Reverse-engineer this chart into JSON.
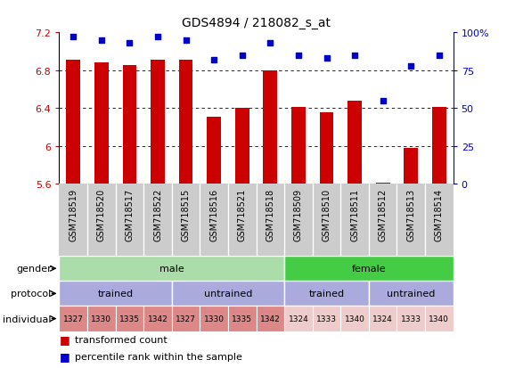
{
  "title": "GDS4894 / 218082_s_at",
  "samples": [
    "GSM718519",
    "GSM718520",
    "GSM718517",
    "GSM718522",
    "GSM718515",
    "GSM718516",
    "GSM718521",
    "GSM718518",
    "GSM718509",
    "GSM718510",
    "GSM718511",
    "GSM718512",
    "GSM718513",
    "GSM718514"
  ],
  "bar_values": [
    6.91,
    6.88,
    6.85,
    6.91,
    6.91,
    6.31,
    6.4,
    6.8,
    6.41,
    6.36,
    6.48,
    5.61,
    5.98,
    6.41
  ],
  "dot_values_pct": [
    97,
    95,
    93,
    97,
    95,
    82,
    85,
    93,
    85,
    83,
    85,
    55,
    78,
    85
  ],
  "ylim_left": [
    5.6,
    7.2
  ],
  "ylim_right": [
    0,
    100
  ],
  "yticks_left": [
    5.6,
    6.0,
    6.4,
    6.8,
    7.2
  ],
  "ytick_labels_left": [
    "5.6",
    "6",
    "6.4",
    "6.8",
    "7.2"
  ],
  "ytick_labels_right": [
    "0",
    "25",
    "50",
    "75",
    "100%"
  ],
  "yticks_right": [
    0,
    25,
    50,
    75,
    100
  ],
  "bar_color": "#cc0000",
  "dot_color": "#0000cc",
  "bar_base": 5.6,
  "grid_yticks": [
    6.0,
    6.4,
    6.8
  ],
  "male_color": "#aaddaa",
  "female_color": "#44cc44",
  "protocol_color": "#aaaadd",
  "ind_male_color": "#dd8888",
  "ind_female_color": "#eecccc",
  "male_count": 8,
  "female_count": 6,
  "protocol_groups": [
    "trained",
    "untrained",
    "trained",
    "untrained"
  ],
  "protocol_counts": [
    4,
    4,
    3,
    3
  ],
  "male_individuals": [
    "1327",
    "1330",
    "1335",
    "1342",
    "1327",
    "1330",
    "1335",
    "1342"
  ],
  "female_individuals": [
    "1324",
    "1333",
    "1340",
    "1324",
    "1333",
    "1340"
  ],
  "legend_bar_label": "transformed count",
  "legend_dot_label": "percentile rank within the sample",
  "row_labels": [
    "gender",
    "protocol",
    "individual"
  ],
  "xtick_bg": "#cccccc",
  "fig_width": 5.78,
  "fig_height": 4.14
}
